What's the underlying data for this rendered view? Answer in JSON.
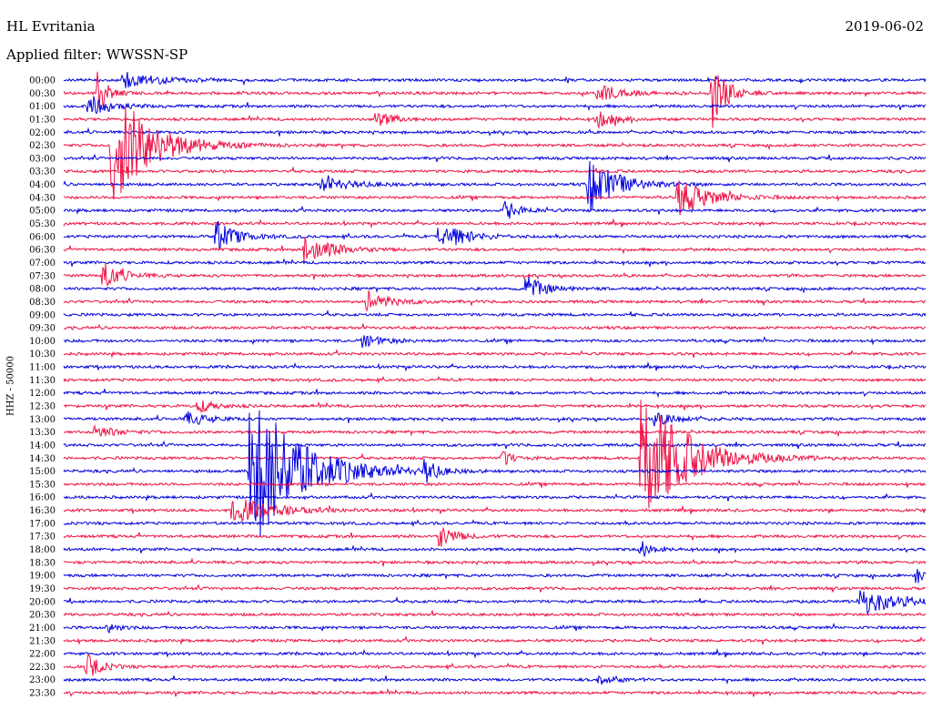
{
  "header": {
    "station": "HL Evritania",
    "date": "2019-06-02",
    "filter": "Applied filter: WWSSN-SP"
  },
  "channel_label": "HHZ - 50000",
  "colors": {
    "trace_a": "#0000dd",
    "trace_b": "#ee1144"
  },
  "chart_data": {
    "type": "line",
    "title": "HL Evritania",
    "subtitle": "Applied filter: WWSSN-SP",
    "date": "2019-06-02",
    "ylabel": "HHZ - 50000",
    "row_labels": [
      "00:00",
      "00:30",
      "01:00",
      "01:30",
      "02:00",
      "02:30",
      "03:00",
      "03:30",
      "04:00",
      "04:30",
      "05:00",
      "05:30",
      "06:00",
      "06:30",
      "07:00",
      "07:30",
      "08:00",
      "08:30",
      "09:00",
      "09:30",
      "10:00",
      "10:30",
      "11:00",
      "11:30",
      "12:00",
      "12:30",
      "13:00",
      "13:30",
      "14:00",
      "14:30",
      "15:00",
      "15:30",
      "16:00",
      "16:30",
      "17:00",
      "17:30",
      "18:00",
      "18:30",
      "19:00",
      "19:30",
      "20:00",
      "20:30",
      "21:00",
      "21:30",
      "22:00",
      "22:30",
      "23:00",
      "23:30"
    ],
    "minutes_per_row": 30,
    "grid": false,
    "events": [
      {
        "row": 0,
        "minute": 2.0,
        "amp": 10,
        "dur": 2.0
      },
      {
        "row": 1,
        "minute": 18.5,
        "amp": 12,
        "dur": 1.3
      },
      {
        "row": 1,
        "minute": 22.5,
        "amp": 45,
        "dur": 0.8
      },
      {
        "row": 2,
        "minute": 0.8,
        "amp": 14,
        "dur": 1.2
      },
      {
        "row": 1,
        "minute": 1.1,
        "amp": 28,
        "dur": 0.6
      },
      {
        "row": 3,
        "minute": 10.8,
        "amp": 10,
        "dur": 1.0
      },
      {
        "row": 3,
        "minute": 18.5,
        "amp": 10,
        "dur": 1.1
      },
      {
        "row": 5,
        "minute": 1.6,
        "amp": 75,
        "dur": 2.2
      },
      {
        "row": 8,
        "minute": 18.2,
        "amp": 35,
        "dur": 1.6
      },
      {
        "row": 9,
        "minute": 21.3,
        "amp": 22,
        "dur": 1.8
      },
      {
        "row": 8,
        "minute": 8.9,
        "amp": 8,
        "dur": 1.8
      },
      {
        "row": 10,
        "minute": 15.3,
        "amp": 12,
        "dur": 0.9
      },
      {
        "row": 12,
        "minute": 5.2,
        "amp": 20,
        "dur": 1.2
      },
      {
        "row": 12,
        "minute": 13.0,
        "amp": 20,
        "dur": 1.4
      },
      {
        "row": 13,
        "minute": 8.3,
        "amp": 18,
        "dur": 1.6
      },
      {
        "row": 15,
        "minute": 1.3,
        "amp": 20,
        "dur": 1.0
      },
      {
        "row": 16,
        "minute": 16.0,
        "amp": 16,
        "dur": 1.1
      },
      {
        "row": 17,
        "minute": 10.5,
        "amp": 14,
        "dur": 1.2
      },
      {
        "row": 20,
        "minute": 10.3,
        "amp": 8,
        "dur": 1.2
      },
      {
        "row": 25,
        "minute": 4.6,
        "amp": 8,
        "dur": 1.0
      },
      {
        "row": 26,
        "minute": 4.2,
        "amp": 9,
        "dur": 1.2
      },
      {
        "row": 26,
        "minute": 20.5,
        "amp": 8,
        "dur": 1.3
      },
      {
        "row": 27,
        "minute": 1.0,
        "amp": 8,
        "dur": 1.2
      },
      {
        "row": 30,
        "minute": 6.4,
        "amp": 100,
        "dur": 2.8
      },
      {
        "row": 30,
        "minute": 12.5,
        "amp": 18,
        "dur": 0.6
      },
      {
        "row": 29,
        "minute": 15.2,
        "amp": 12,
        "dur": 0.6
      },
      {
        "row": 29,
        "minute": 20.0,
        "amp": 90,
        "dur": 2.5
      },
      {
        "row": 33,
        "minute": 5.8,
        "amp": 15,
        "dur": 2.5
      },
      {
        "row": 35,
        "minute": 13.0,
        "amp": 14,
        "dur": 1.0
      },
      {
        "row": 36,
        "minute": 20.0,
        "amp": 14,
        "dur": 0.6
      },
      {
        "row": 38,
        "minute": 29.6,
        "amp": 12,
        "dur": 0.5
      },
      {
        "row": 40,
        "minute": 27.6,
        "amp": 18,
        "dur": 2.0
      },
      {
        "row": 42,
        "minute": 1.4,
        "amp": 9,
        "dur": 0.6
      },
      {
        "row": 45,
        "minute": 0.7,
        "amp": 18,
        "dur": 0.8
      },
      {
        "row": 46,
        "minute": 18.5,
        "amp": 6,
        "dur": 1.2
      }
    ]
  }
}
